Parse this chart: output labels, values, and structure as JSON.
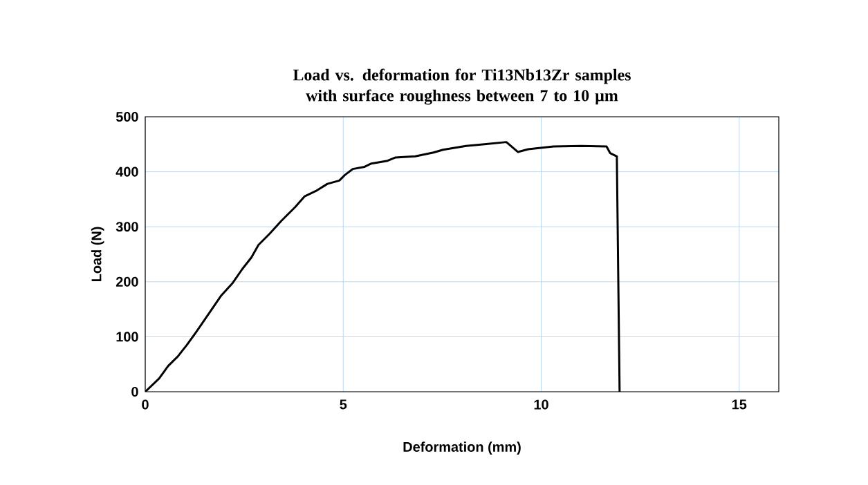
{
  "chart_data": {
    "type": "line",
    "title": "Load vs. deformation for Ti13Nb13Zr samples with surface roughness between 7 to 10 µm",
    "xlabel": "Deformation (mm)",
    "ylabel": "Load (N)",
    "xlim": [
      0,
      16
    ],
    "ylim": [
      0,
      500
    ],
    "xticks": [
      0,
      5,
      10,
      15
    ],
    "yticks": [
      0,
      100,
      200,
      300,
      400,
      500
    ],
    "grid": true,
    "marker": "none",
    "line_style": "solid",
    "series": [
      {
        "color": "#000000",
        "x": [
          0,
          0.35,
          0.58,
          0.82,
          1.05,
          1.28,
          1.52,
          1.92,
          2.21,
          2.45,
          2.68,
          2.86,
          3.15,
          3.44,
          3.79,
          4.02,
          4.31,
          4.6,
          4.9,
          5.04,
          5.24,
          5.54,
          5.71,
          6.12,
          6.32,
          6.82,
          7.28,
          7.52,
          8.1,
          8.57,
          9.12,
          9.41,
          9.67,
          10.31,
          11.01,
          11.65,
          11.74,
          11.91,
          11.98
        ],
        "values": [
          0,
          24,
          47,
          64,
          85,
          108,
          133,
          175,
          198,
          223,
          244,
          267,
          288,
          311,
          336,
          355,
          365,
          378,
          384,
          394,
          405,
          409,
          415,
          420,
          426,
          428,
          435,
          440,
          447,
          450,
          454,
          436,
          441,
          446,
          447,
          446,
          434,
          428,
          0
        ]
      }
    ]
  }
}
